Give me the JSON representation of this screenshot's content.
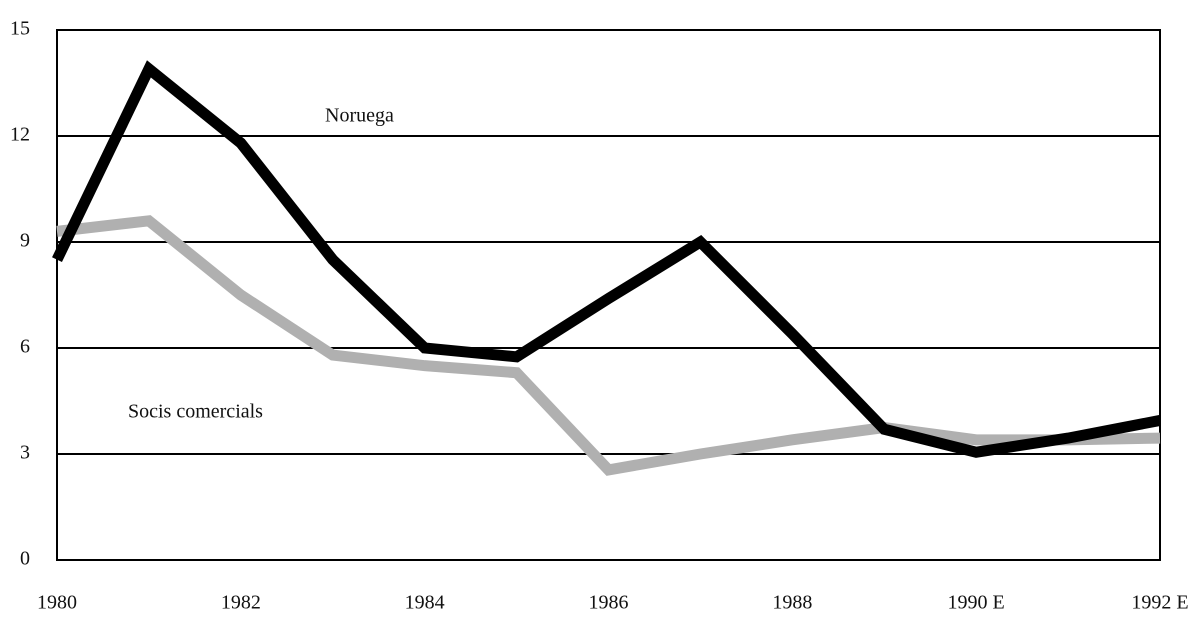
{
  "chart_data": {
    "type": "line",
    "categories": [
      "1980",
      null,
      "1982",
      null,
      "1984",
      null,
      "1986",
      null,
      "1988",
      null,
      "1990 E",
      null,
      "1992 E"
    ],
    "series": [
      {
        "name": "Noruega",
        "color": "#000000",
        "values": [
          8.5,
          13.9,
          11.8,
          8.5,
          6.0,
          5.75,
          7.4,
          9.0,
          6.4,
          3.7,
          3.05,
          3.45,
          3.95
        ]
      },
      {
        "name": "Socis comercials",
        "color": "#b0b0b0",
        "values": [
          9.3,
          9.6,
          7.5,
          5.8,
          5.5,
          5.3,
          2.55,
          3.0,
          3.4,
          3.75,
          3.4,
          3.4,
          3.45
        ]
      }
    ],
    "ylim": [
      0,
      15
    ],
    "yticks": [
      0,
      3,
      6,
      9,
      12,
      15
    ],
    "grid": true
  }
}
